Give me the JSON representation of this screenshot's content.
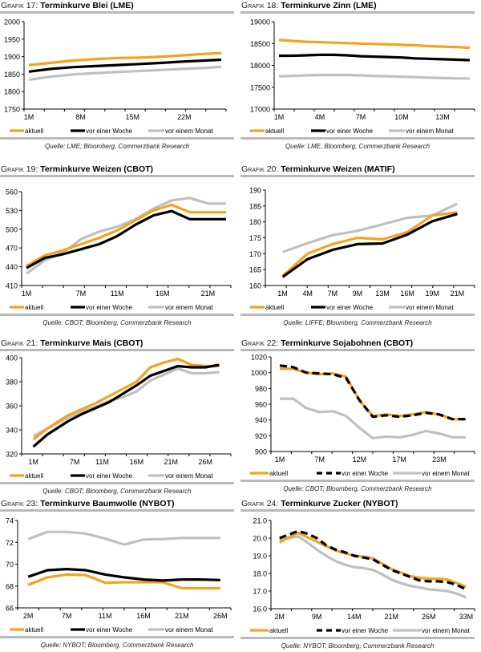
{
  "colors": {
    "aktuell": "#f7a21b",
    "woche": "#000000",
    "monat": "#c0c0c0",
    "rule": "#b9b9b9"
  },
  "legend_labels": [
    "aktuell",
    "vor einer Woche",
    "vor einem Monat"
  ],
  "chart_data": [
    {
      "id": "g17",
      "type": "line",
      "prefix": "Grafik",
      "number": "17:",
      "title": "Terminkurve Blei (LME)",
      "source": "Quelle: LME; Bloomberg, Commerzbank Research",
      "xlabel": "",
      "ylabel": "",
      "ylim": [
        1750,
        2000
      ],
      "yticks": [
        "1750",
        "1800",
        "1850",
        "1900",
        "1950",
        "2000"
      ],
      "ytick_values": [
        1750,
        1800,
        1850,
        1900,
        1950,
        2000
      ],
      "x": [
        1,
        4,
        7,
        10,
        13,
        16,
        19,
        22,
        25,
        27
      ],
      "xlim": [
        1,
        27
      ],
      "xticks": [
        {
          "v": 1,
          "label": "1M"
        },
        {
          "v": 8,
          "label": "8M"
        },
        {
          "v": 15,
          "label": "15M"
        },
        {
          "v": 22,
          "label": "22M"
        }
      ],
      "legend": "bottom",
      "woche_dashed": false,
      "series": [
        {
          "name": "aktuell",
          "values": [
            1876,
            1882,
            1889,
            1893,
            1896,
            1897,
            1900,
            1904,
            1908,
            1910
          ]
        },
        {
          "name": "vor einer Woche",
          "values": [
            1857,
            1865,
            1870,
            1873,
            1876,
            1879,
            1882,
            1886,
            1889,
            1891
          ]
        },
        {
          "name": "vor einem Monat",
          "values": [
            1834,
            1843,
            1849,
            1853,
            1856,
            1859,
            1862,
            1865,
            1868,
            1871
          ]
        }
      ]
    },
    {
      "id": "g18",
      "type": "line",
      "prefix": "Grafik",
      "number": "18:",
      "title": "Terminkurve Zinn (LME)",
      "source": "Quelle: LME, Bloomberg, Commerzbank Research",
      "xlabel": "",
      "ylabel": "",
      "ylim": [
        17000,
        19000
      ],
      "yticks": [
        "17000",
        "17500",
        "18000",
        "18500",
        "19000"
      ],
      "ytick_values": [
        17000,
        17500,
        18000,
        18500,
        19000
      ],
      "x": [
        1,
        2,
        3,
        4,
        5,
        6,
        7,
        8,
        9,
        10,
        11,
        12,
        13,
        14,
        15
      ],
      "xlim": [
        1,
        15
      ],
      "xticks": [
        {
          "v": 1,
          "label": "1M"
        },
        {
          "v": 4,
          "label": "4M"
        },
        {
          "v": 7,
          "label": "7M"
        },
        {
          "v": 10,
          "label": "10M"
        },
        {
          "v": 13,
          "label": "13M"
        }
      ],
      "legend": "bottom",
      "woche_dashed": false,
      "series": [
        {
          "name": "aktuell",
          "values": [
            18580,
            18560,
            18540,
            18530,
            18520,
            18510,
            18500,
            18490,
            18480,
            18470,
            18460,
            18440,
            18430,
            18420,
            18400
          ]
        },
        {
          "name": "vor einer Woche",
          "values": [
            18220,
            18220,
            18230,
            18240,
            18240,
            18230,
            18210,
            18200,
            18190,
            18180,
            18160,
            18150,
            18140,
            18130,
            18120
          ]
        },
        {
          "name": "vor einem Monat",
          "values": [
            17750,
            17760,
            17770,
            17780,
            17780,
            17780,
            17770,
            17760,
            17750,
            17740,
            17730,
            17720,
            17710,
            17700,
            17700
          ]
        }
      ]
    },
    {
      "id": "g19",
      "type": "line",
      "prefix": "Grafik",
      "number": "19:",
      "title": "Terminkurve Weizen (CBOT)",
      "source": "Quelle: CBOT; Bloomberg, Commerzbank Research",
      "xlabel": "",
      "ylabel": "",
      "ylim": [
        410,
        560
      ],
      "yticks": [
        "410",
        "440",
        "470",
        "500",
        "530",
        "560"
      ],
      "ytick_values": [
        410,
        440,
        470,
        500,
        530,
        560
      ],
      "x": [
        1,
        3,
        5,
        7,
        9,
        11,
        13,
        15,
        17,
        19,
        21,
        23
      ],
      "xlim": [
        1,
        23
      ],
      "xticks": [
        {
          "v": 1,
          "label": "1M"
        },
        {
          "v": 7,
          "label": "7M"
        },
        {
          "v": 11,
          "label": "11M"
        },
        {
          "v": 16,
          "label": "16M"
        },
        {
          "v": 21,
          "label": "21M"
        }
      ],
      "legend": "bottom",
      "woche_dashed": false,
      "series": [
        {
          "name": "aktuell",
          "values": [
            441,
            458,
            466,
            476,
            486,
            498,
            514,
            530,
            539,
            527,
            527,
            527
          ]
        },
        {
          "name": "vor einer Woche",
          "values": [
            438,
            454,
            460,
            468,
            476,
            489,
            507,
            522,
            529,
            516,
            516,
            516
          ]
        },
        {
          "name": "vor einem Monat",
          "values": [
            429,
            450,
            462,
            484,
            496,
            504,
            516,
            533,
            546,
            550,
            541,
            541
          ]
        }
      ]
    },
    {
      "id": "g20",
      "type": "line",
      "prefix": "Grafik",
      "number": "20:",
      "title": "Terminkurve Weizen (MATIF)",
      "source": "Quelle: LIFFE; Bloomberg, Commerzbank Research",
      "xlabel": "",
      "ylabel": "",
      "ylim": [
        160,
        190
      ],
      "yticks": [
        "160",
        "165",
        "170",
        "175",
        "180",
        "185",
        "190"
      ],
      "ytick_values": [
        160,
        165,
        170,
        175,
        180,
        185,
        190
      ],
      "x": [
        0,
        1,
        2,
        3,
        4,
        5,
        6,
        7
      ],
      "xlim": [
        -0.5,
        7.5
      ],
      "xticks": [
        {
          "v": 0,
          "label": "1M"
        },
        {
          "v": 1,
          "label": "4M"
        },
        {
          "v": 2,
          "label": "7M"
        },
        {
          "v": 3,
          "label": "9M"
        },
        {
          "v": 4,
          "label": "13M"
        },
        {
          "v": 5,
          "label": "16M"
        },
        {
          "v": 6,
          "label": "19M"
        },
        {
          "v": 7,
          "label": "21M"
        }
      ],
      "legend": "bottom",
      "woche_dashed": false,
      "series": [
        {
          "name": "aktuell",
          "values": [
            163.0,
            170.0,
            173.0,
            175.0,
            174.5,
            176.8,
            182.0,
            183.0
          ]
        },
        {
          "name": "vor einer Woche",
          "values": [
            162.7,
            168.3,
            171.2,
            173.0,
            173.2,
            176.0,
            180.2,
            182.5
          ]
        },
        {
          "name": "vor einem Monat",
          "values": [
            170.5,
            173.3,
            175.8,
            177.2,
            179.2,
            181.3,
            182.0,
            185.7
          ]
        }
      ]
    },
    {
      "id": "g21",
      "type": "line",
      "prefix": "Grafik",
      "number": "21:",
      "title": "Terminkurve Mais (CBOT)",
      "source": "Quelle: CBOT; Bloomberg, Commerzbank Research",
      "xlabel": "",
      "ylabel": "",
      "ylim": [
        320,
        400
      ],
      "yticks": [
        "320",
        "340",
        "360",
        "380",
        "400"
      ],
      "ytick_values": [
        320,
        340,
        360,
        380,
        400
      ],
      "x": [
        1,
        3,
        6,
        8,
        10,
        12,
        14,
        16,
        18,
        20,
        22,
        24,
        26,
        28
      ],
      "xlim": [
        0,
        29
      ],
      "xticks": [
        {
          "v": 1,
          "label": "1M"
        },
        {
          "v": 7,
          "label": "7M"
        },
        {
          "v": 11,
          "label": "11M"
        },
        {
          "v": 16,
          "label": "16M"
        },
        {
          "v": 21,
          "label": "21M"
        },
        {
          "v": 26,
          "label": "26M"
        }
      ],
      "legend": "bottom",
      "woche_dashed": false,
      "series": [
        {
          "name": "aktuell",
          "values": [
            332,
            341,
            352,
            357,
            362,
            368,
            374,
            380,
            392,
            396,
            399,
            394,
            393,
            393
          ]
        },
        {
          "name": "vor einer Woche",
          "values": [
            326,
            336,
            347,
            353,
            358,
            363,
            370,
            377,
            385,
            389,
            393,
            392,
            392,
            394
          ]
        },
        {
          "name": "vor einem Monat",
          "values": [
            335,
            341,
            350,
            355,
            359,
            364,
            367,
            372,
            381,
            386,
            391,
            387,
            387,
            388
          ]
        }
      ]
    },
    {
      "id": "g22",
      "type": "line",
      "prefix": "Grafik",
      "number": "22:",
      "title": "Terminkurve Sojabohnen (CBOT)",
      "source": "Quelle: CBOT; Bloomberg, Commerzbank Research",
      "xlabel": "",
      "ylabel": "",
      "ylim": [
        900,
        1020
      ],
      "yticks": [
        "900",
        "920",
        "940",
        "960",
        "980",
        "1000",
        "1020"
      ],
      "ytick_values": [
        900,
        920,
        940,
        960,
        980,
        1000,
        1020
      ],
      "x": [
        0,
        1,
        2,
        3,
        4,
        5,
        6,
        7,
        8,
        9,
        10,
        11,
        12,
        13,
        14
      ],
      "xlim": [
        -0.3,
        14.3
      ],
      "xticks": [
        {
          "v": 0,
          "label": "1M"
        },
        {
          "v": 3,
          "label": "7M"
        },
        {
          "v": 6,
          "label": "12M"
        },
        {
          "v": 9,
          "label": "17M"
        },
        {
          "v": 12,
          "label": "23M"
        }
      ],
      "legend": "bottom",
      "woche_dashed": true,
      "series": [
        {
          "name": "aktuell",
          "values": [
            1005,
            1005,
            1000,
            998,
            999,
            995,
            965,
            945,
            947,
            945,
            947,
            950,
            947,
            941,
            941
          ]
        },
        {
          "name": "vor einer Woche",
          "values": [
            1009,
            1007,
            1000,
            999,
            998,
            993,
            965,
            944,
            946,
            944,
            946,
            949,
            947,
            941,
            941
          ]
        },
        {
          "name": "vor einem Monat",
          "values": [
            967,
            967,
            955,
            950,
            951,
            945,
            930,
            917,
            919,
            918,
            921,
            926,
            923,
            918,
            918
          ]
        }
      ]
    },
    {
      "id": "g23",
      "type": "line",
      "prefix": "Grafik",
      "number": "23:",
      "title": "Terminkurve Baumwolle (NYBOT)",
      "source": "Quelle: NYBOT; Bloomberg, Commerzbank Research",
      "xlabel": "",
      "ylabel": "",
      "ylim": [
        66,
        74
      ],
      "yticks": [
        "66",
        "68",
        "70",
        "72",
        "74"
      ],
      "ytick_values": [
        66,
        68,
        70,
        72,
        74
      ],
      "x": [
        0,
        1,
        2,
        3,
        4,
        5,
        6,
        7,
        8,
        9,
        10
      ],
      "xlim": [
        -0.3,
        10.3
      ],
      "xticks": [
        {
          "v": 0,
          "label": "2M"
        },
        {
          "v": 2,
          "label": "7M"
        },
        {
          "v": 4,
          "label": "11M"
        },
        {
          "v": 6,
          "label": "16M"
        },
        {
          "v": 8,
          "label": "21M"
        },
        {
          "v": 10,
          "label": "26M"
        }
      ],
      "legend": "bottom",
      "woche_dashed": false,
      "series": [
        {
          "name": "aktuell",
          "values": [
            68.1,
            68.8,
            69.05,
            69.0,
            68.3,
            68.35,
            68.35,
            68.35,
            67.8,
            67.8,
            67.8
          ]
        },
        {
          "name": "vor einer Woche",
          "values": [
            68.85,
            69.45,
            69.55,
            69.45,
            69.05,
            68.8,
            68.6,
            68.5,
            68.6,
            68.6,
            68.55
          ]
        },
        {
          "name": "vor einem Monat",
          "values": [
            72.3,
            72.95,
            72.95,
            72.8,
            72.35,
            71.8,
            72.25,
            72.3,
            72.4,
            72.4,
            72.4
          ]
        }
      ]
    },
    {
      "id": "g24",
      "type": "line",
      "prefix": "Grafik",
      "number": "24:",
      "title": "Terminkurve Zucker (NYBOT)",
      "source": "Quelle: NYBOT; Bloomberg, Commerzbank Research",
      "xlabel": "",
      "ylabel": "",
      "ylim": [
        16.0,
        21.0
      ],
      "yticks": [
        "16.0",
        "17.0",
        "18.0",
        "19.0",
        "20.0",
        "21.0"
      ],
      "ytick_values": [
        16,
        17,
        18,
        19,
        20,
        21
      ],
      "x": [
        0,
        1,
        2,
        3,
        4,
        5,
        6,
        7,
        8,
        9,
        10,
        11,
        12,
        13,
        14,
        15,
        16,
        17,
        18,
        19,
        20
      ],
      "xlim": [
        -0.4,
        20.4
      ],
      "xticks": [
        {
          "v": 0,
          "label": "2M"
        },
        {
          "v": 4,
          "label": "9M"
        },
        {
          "v": 8,
          "label": "14M"
        },
        {
          "v": 12,
          "label": "21M"
        },
        {
          "v": 16,
          "label": "26M"
        },
        {
          "v": 20,
          "label": "33M"
        }
      ],
      "legend": "bottom",
      "woche_dashed": true,
      "series": [
        {
          "name": "aktuell",
          "values": [
            19.75,
            20.05,
            20.3,
            20.05,
            19.8,
            19.55,
            19.3,
            19.15,
            19.0,
            18.95,
            18.85,
            18.55,
            18.25,
            18.05,
            17.85,
            17.75,
            17.7,
            17.7,
            17.65,
            17.45,
            17.25
          ]
        },
        {
          "name": "vor einer Woche",
          "values": [
            20.0,
            20.2,
            20.4,
            20.25,
            20.0,
            19.6,
            19.35,
            19.2,
            19.0,
            18.9,
            18.8,
            18.5,
            18.2,
            18.0,
            17.8,
            17.6,
            17.55,
            17.55,
            17.5,
            17.35,
            17.1
          ]
        },
        {
          "name": "vor einem Monat",
          "values": [
            19.9,
            20.0,
            20.1,
            19.75,
            19.35,
            19.0,
            18.7,
            18.5,
            18.35,
            18.3,
            18.2,
            17.95,
            17.65,
            17.45,
            17.3,
            17.2,
            17.1,
            17.05,
            17.0,
            16.85,
            16.65
          ]
        }
      ]
    }
  ]
}
